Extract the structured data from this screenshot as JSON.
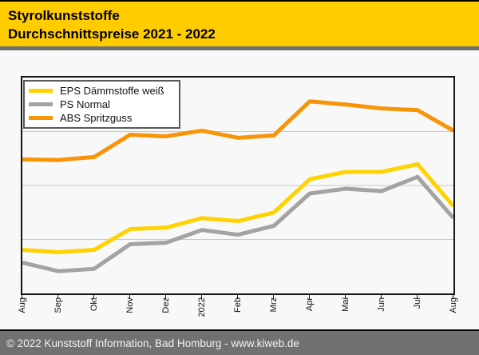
{
  "header": {
    "title_line1": "Styrolkunststoffe",
    "title_line2": "Durchschnittspreise 2021 - 2022"
  },
  "footer": {
    "text": "© 2022 Kunststoff Information, Bad Homburg - www.kiweb.de"
  },
  "legend": {
    "items": [
      {
        "label": "EPS Dämmstoffe weiß",
        "color": "#ffd200"
      },
      {
        "label": "PS Normal",
        "color": "#a3a3a3"
      },
      {
        "label": "ABS Spritzguss",
        "color": "#f79408"
      }
    ]
  },
  "colors": {
    "header_background": "#ffcc00",
    "divider_gray": "#6f6f6f",
    "footer_gray": "#717171",
    "plot_border": "#141414",
    "gridline": "#c9c9c9",
    "page_background": "#f8f8f8"
  },
  "chart_data": {
    "type": "line",
    "title": "Styrolkunststoffe Durchschnittspreise 2021 - 2022",
    "categories": [
      "Aug",
      "Sep",
      "Okt",
      "Nov",
      "Dez",
      "2022",
      "Feb",
      "Mrz",
      "Apr",
      "Mai",
      "Jun",
      "Jul",
      "Aug"
    ],
    "series": [
      {
        "name": "EPS Dämmstoffe weiß",
        "color": "#ffd200",
        "values": [
          20.2,
          19.1,
          20.2,
          29.8,
          30.5,
          34.9,
          33.5,
          37.5,
          52.9,
          56.3,
          56.3,
          59.9,
          40.4
        ]
      },
      {
        "name": "PS Normal",
        "color": "#a3a3a3",
        "values": [
          14.3,
          10.3,
          11.4,
          22.8,
          23.5,
          29.4,
          27.2,
          31.3,
          46.3,
          48.5,
          47.4,
          54.0,
          34.9
        ]
      },
      {
        "name": "ABS Spritzguss",
        "color": "#f79408",
        "values": [
          62.1,
          61.8,
          63.2,
          73.5,
          72.8,
          75.4,
          72.1,
          73.2,
          89.0,
          87.5,
          85.7,
          84.9,
          75.4
        ]
      }
    ],
    "xlabel": "",
    "ylabel": "",
    "ylim": [
      0,
      100
    ],
    "y_units": "relative price index (chart shows no y-axis tick labels)",
    "gridlines_y": [
      25,
      50,
      75
    ],
    "grid": true,
    "legend_position": "top-left",
    "x_tick_label_rotation_deg": 90
  }
}
